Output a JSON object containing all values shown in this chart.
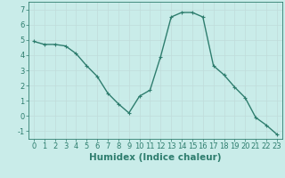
{
  "x": [
    0,
    1,
    2,
    3,
    4,
    5,
    6,
    7,
    8,
    9,
    10,
    11,
    12,
    13,
    14,
    15,
    16,
    17,
    18,
    19,
    20,
    21,
    22,
    23
  ],
  "y": [
    4.9,
    4.7,
    4.7,
    4.6,
    4.1,
    3.3,
    2.6,
    1.5,
    0.8,
    0.2,
    1.3,
    1.7,
    3.9,
    6.5,
    6.8,
    6.8,
    6.5,
    3.3,
    2.7,
    1.9,
    1.2,
    -0.1,
    -0.6,
    -1.2
  ],
  "line_color": "#2e7d6e",
  "marker": "+",
  "marker_size": 3.5,
  "linewidth": 1.0,
  "xlabel": "Humidex (Indice chaleur)",
  "xlim": [
    -0.5,
    23.5
  ],
  "ylim": [
    -1.5,
    7.5
  ],
  "yticks": [
    -1,
    0,
    1,
    2,
    3,
    4,
    5,
    6,
    7
  ],
  "xticks": [
    0,
    1,
    2,
    3,
    4,
    5,
    6,
    7,
    8,
    9,
    10,
    11,
    12,
    13,
    14,
    15,
    16,
    17,
    18,
    19,
    20,
    21,
    22,
    23
  ],
  "xtick_labels": [
    "0",
    "1",
    "2",
    "3",
    "4",
    "5",
    "6",
    "7",
    "8",
    "9",
    "10",
    "11",
    "12",
    "13",
    "14",
    "15",
    "16",
    "17",
    "18",
    "19",
    "20",
    "21",
    "22",
    "23"
  ],
  "bg_color": "#c9ece9",
  "grid_color": "#b2d8d4",
  "line_grid_color": "#c0dcda",
  "tick_color": "#2e7d6e",
  "label_color": "#2e7d6e",
  "xlabel_fontsize": 7.5,
  "tick_fontsize": 6.0
}
